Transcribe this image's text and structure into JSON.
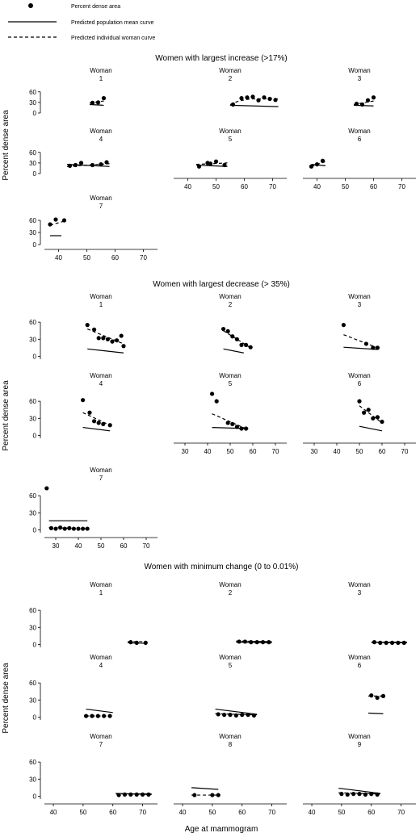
{
  "legend": {
    "dots_label": "Percent dense area",
    "solid_label": "Predicted population mean curve",
    "dashed_label": "Predicted individual woman curve"
  },
  "chart_data": [
    {
      "type": "scatter",
      "title": "Women with largest increase (>17%)",
      "ylabel": "Percent dense area",
      "xlabel": "",
      "xlim": [
        35,
        75
      ],
      "ylim": [
        0,
        80
      ],
      "xticks": [
        40,
        50,
        60,
        70
      ],
      "yticks": [
        0,
        30,
        60
      ],
      "yticks_overlapped": true,
      "panel_prefix": "Woman",
      "panels": [
        {
          "label": "1",
          "points": [
            [
              52,
              29
            ],
            [
              54,
              30
            ],
            [
              56,
              42
            ]
          ],
          "pred_pop": [
            [
              51,
              24
            ],
            [
              56,
              22
            ]
          ],
          "pred_ind": [
            [
              51,
              28
            ],
            [
              56,
              34
            ]
          ]
        },
        {
          "label": "2",
          "points": [
            [
              56,
              24
            ],
            [
              59,
              42
            ],
            [
              61,
              44
            ],
            [
              63,
              46
            ],
            [
              65,
              36
            ],
            [
              67,
              44
            ],
            [
              69,
              40
            ],
            [
              71,
              37
            ]
          ],
          "pred_pop": [
            [
              55,
              22
            ],
            [
              72,
              18
            ]
          ],
          "pred_ind": [
            [
              55,
              24
            ],
            [
              58,
              34
            ],
            [
              62,
              40
            ],
            [
              72,
              40
            ]
          ]
        },
        {
          "label": "3",
          "points": [
            [
              54,
              26
            ],
            [
              56,
              24
            ],
            [
              58,
              36
            ],
            [
              60,
              44
            ]
          ],
          "pred_pop": [
            [
              53,
              22
            ],
            [
              60,
              20
            ]
          ],
          "pred_ind": [
            [
              53,
              24
            ],
            [
              60,
              34
            ]
          ]
        },
        {
          "label": "4",
          "points": [
            [
              44,
              22
            ],
            [
              46,
              24
            ],
            [
              48,
              30
            ],
            [
              52,
              24
            ],
            [
              55,
              26
            ],
            [
              57,
              32
            ]
          ],
          "pred_pop": [
            [
              43,
              26
            ],
            [
              58,
              20
            ]
          ],
          "pred_ind": [
            [
              43,
              20
            ],
            [
              58,
              28
            ]
          ]
        },
        {
          "label": "5",
          "points": [
            [
              44,
              20
            ],
            [
              47,
              30
            ],
            [
              48,
              28
            ],
            [
              50,
              34
            ],
            [
              53,
              24
            ]
          ],
          "pred_pop": [
            [
              43,
              24
            ],
            [
              54,
              20
            ]
          ],
          "pred_ind": [
            [
              43,
              26
            ],
            [
              54,
              30
            ]
          ]
        },
        {
          "label": "6",
          "points": [
            [
              38,
              20
            ],
            [
              40,
              26
            ],
            [
              42,
              36
            ]
          ],
          "pred_pop": [
            [
              38,
              26
            ],
            [
              43,
              22
            ]
          ],
          "pred_ind": [
            [
              38,
              20
            ],
            [
              43,
              34
            ]
          ]
        },
        {
          "label": "7",
          "points": [
            [
              37,
              50
            ],
            [
              39,
              62
            ],
            [
              42,
              60
            ]
          ],
          "pred_pop": [
            [
              37,
              22
            ],
            [
              41,
              22
            ]
          ],
          "pred_ind": [
            [
              37,
              48
            ],
            [
              42,
              58
            ]
          ]
        }
      ]
    },
    {
      "type": "scatter",
      "title": "Women with largest decrease (> 35%)",
      "ylabel": "Percent dense area",
      "xlabel": "",
      "xlim": [
        25,
        75
      ],
      "ylim": [
        -5,
        80
      ],
      "xticks": [
        30,
        40,
        50,
        60,
        70
      ],
      "yticks": [
        0,
        30,
        60
      ],
      "panel_prefix": "Woman",
      "panels": [
        {
          "label": "1",
          "points": [
            [
              44,
              55
            ],
            [
              47,
              47
            ],
            [
              49,
              32
            ],
            [
              51,
              32
            ],
            [
              53,
              30
            ],
            [
              55,
              26
            ],
            [
              57,
              28
            ],
            [
              59,
              36
            ],
            [
              60,
              18
            ]
          ],
          "pred_pop": [
            [
              44,
              13
            ],
            [
              60,
              6
            ]
          ],
          "pred_ind": [
            [
              44,
              48
            ],
            [
              60,
              22
            ]
          ]
        },
        {
          "label": "2",
          "points": [
            [
              47,
              48
            ],
            [
              49,
              44
            ],
            [
              51,
              35
            ],
            [
              53,
              30
            ],
            [
              55,
              20
            ],
            [
              57,
              20
            ],
            [
              59,
              16
            ]
          ],
          "pred_pop": [
            [
              47,
              13
            ],
            [
              56,
              6
            ]
          ],
          "pred_ind": [
            [
              47,
              45
            ],
            [
              59,
              15
            ]
          ]
        },
        {
          "label": "3",
          "points": [
            [
              43,
              55
            ],
            [
              53,
              22
            ],
            [
              56,
              15
            ],
            [
              58,
              15
            ]
          ],
          "pred_pop": [
            [
              43,
              16
            ],
            [
              58,
              12
            ]
          ],
          "pred_ind": [
            [
              43,
              38
            ],
            [
              58,
              15
            ]
          ]
        },
        {
          "label": "4",
          "points": [
            [
              42,
              62
            ],
            [
              45,
              40
            ],
            [
              47,
              25
            ],
            [
              49,
              22
            ],
            [
              51,
              20
            ],
            [
              54,
              18
            ]
          ],
          "pred_pop": [
            [
              42,
              14
            ],
            [
              54,
              8
            ]
          ],
          "pred_ind": [
            [
              42,
              40
            ],
            [
              54,
              18
            ]
          ]
        },
        {
          "label": "5",
          "points": [
            [
              42,
              73
            ],
            [
              44,
              60
            ],
            [
              49,
              22
            ],
            [
              51,
              20
            ],
            [
              53,
              15
            ],
            [
              55,
              12
            ],
            [
              57,
              12
            ]
          ],
          "pred_pop": [
            [
              42,
              14
            ],
            [
              58,
              12
            ]
          ],
          "pred_ind": [
            [
              42,
              38
            ],
            [
              58,
              10
            ]
          ]
        },
        {
          "label": "6",
          "points": [
            [
              50,
              60
            ],
            [
              52,
              40
            ],
            [
              54,
              45
            ],
            [
              56,
              30
            ],
            [
              58,
              32
            ],
            [
              60,
              24
            ]
          ],
          "pred_pop": [
            [
              50,
              16
            ],
            [
              60,
              8
            ]
          ],
          "pred_ind": [
            [
              50,
              52
            ],
            [
              60,
              22
            ]
          ]
        },
        {
          "label": "7",
          "points": [
            [
              26,
              73
            ],
            [
              28,
              3
            ],
            [
              30,
              2
            ],
            [
              32,
              4
            ],
            [
              34,
              2
            ],
            [
              36,
              3
            ],
            [
              38,
              2
            ],
            [
              40,
              2
            ],
            [
              42,
              2
            ],
            [
              44,
              2
            ]
          ],
          "pred_pop": [
            [
              27,
              16
            ],
            [
              44,
              16
            ]
          ],
          "pred_ind": [
            [
              27,
              4
            ],
            [
              44,
              2
            ]
          ]
        }
      ]
    },
    {
      "type": "scatter",
      "title": "Women with minimum change (0 to 0.01%)",
      "ylabel": "Percent dense area",
      "xlabel": "Age at mammogram",
      "xlim": [
        37,
        75
      ],
      "ylim": [
        -5,
        80
      ],
      "xticks": [
        40,
        50,
        60,
        70
      ],
      "yticks": [
        0,
        30,
        60
      ],
      "panel_prefix": "Woman",
      "panels": [
        {
          "label": "1",
          "points": [
            [
              66,
              4
            ],
            [
              68,
              3
            ],
            [
              71,
              3
            ]
          ],
          "pred_pop": [
            [
              65,
              3
            ],
            [
              71,
              2
            ]
          ],
          "pred_ind": [
            [
              65,
              5
            ],
            [
              71,
              5
            ]
          ]
        },
        {
          "label": "2",
          "points": [
            [
              59,
              5
            ],
            [
              61,
              5
            ],
            [
              63,
              4
            ],
            [
              65,
              4
            ],
            [
              67,
              4
            ],
            [
              69,
              4
            ]
          ],
          "pred_pop": [
            [
              58,
              4
            ],
            [
              70,
              3
            ]
          ],
          "pred_ind": [
            [
              58,
              6
            ],
            [
              70,
              5
            ]
          ]
        },
        {
          "label": "3",
          "points": [
            [
              61,
              4
            ],
            [
              63,
              3
            ],
            [
              65,
              3
            ],
            [
              67,
              3
            ],
            [
              69,
              3
            ],
            [
              71,
              3
            ]
          ],
          "pred_pop": [
            [
              60,
              4
            ],
            [
              72,
              3
            ]
          ],
          "pred_ind": [
            [
              60,
              4
            ],
            [
              72,
              4
            ]
          ]
        },
        {
          "label": "4",
          "points": [
            [
              51,
              2
            ],
            [
              53,
              2
            ],
            [
              55,
              2
            ],
            [
              57,
              2
            ],
            [
              59,
              2
            ]
          ],
          "pred_pop": [
            [
              51,
              14
            ],
            [
              60,
              8
            ]
          ],
          "pred_ind": [
            [
              51,
              2
            ],
            [
              60,
              2
            ]
          ]
        },
        {
          "label": "5",
          "points": [
            [
              52,
              5
            ],
            [
              54,
              4
            ],
            [
              56,
              4
            ],
            [
              58,
              3
            ],
            [
              60,
              4
            ],
            [
              62,
              4
            ],
            [
              64,
              3
            ]
          ],
          "pred_pop": [
            [
              51,
              14
            ],
            [
              65,
              5
            ]
          ],
          "pred_ind": [
            [
              51,
              6
            ],
            [
              65,
              4
            ]
          ]
        },
        {
          "label": "6",
          "points": [
            [
              60,
              38
            ],
            [
              62,
              34
            ],
            [
              64,
              37
            ]
          ],
          "pred_pop": [
            [
              59,
              7
            ],
            [
              64,
              6
            ]
          ],
          "pred_ind": [
            [
              59,
              37
            ],
            [
              64,
              37
            ]
          ]
        },
        {
          "label": "7",
          "points": [
            [
              62,
              2
            ],
            [
              64,
              3
            ],
            [
              66,
              3
            ],
            [
              68,
              3
            ],
            [
              70,
              3
            ],
            [
              72,
              3
            ]
          ],
          "pred_pop": [
            [
              61,
              5
            ],
            [
              73,
              3
            ]
          ],
          "pred_ind": [
            [
              61,
              4
            ],
            [
              73,
              4
            ]
          ]
        },
        {
          "label": "8",
          "points": [
            [
              44,
              2
            ],
            [
              50,
              2
            ],
            [
              52,
              2
            ]
          ],
          "pred_pop": [
            [
              43,
              15
            ],
            [
              52,
              12
            ]
          ],
          "pred_ind": [
            [
              43,
              2
            ],
            [
              52,
              2
            ]
          ]
        },
        {
          "label": "9",
          "points": [
            [
              50,
              4
            ],
            [
              52,
              3
            ],
            [
              54,
              4
            ],
            [
              56,
              4
            ],
            [
              58,
              3
            ],
            [
              60,
              4
            ],
            [
              62,
              3
            ]
          ],
          "pred_pop": [
            [
              49,
              14
            ],
            [
              63,
              5
            ]
          ],
          "pred_ind": [
            [
              49,
              6
            ],
            [
              63,
              4
            ]
          ]
        }
      ]
    }
  ]
}
